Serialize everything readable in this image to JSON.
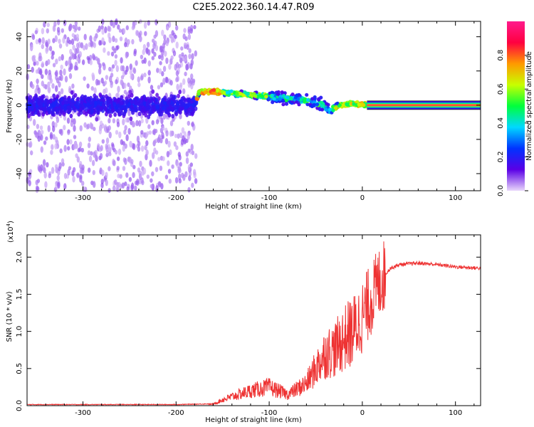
{
  "title": "C2E5.2022.360.14.47.R09",
  "chart_data": [
    {
      "type": "heatmap",
      "xlabel": "Height of straight line (km)",
      "ylabel": "Frequency (Hz)",
      "xlim": [
        -360,
        127
      ],
      "ylim": [
        -50,
        49
      ],
      "x_ticks": [
        -300,
        -200,
        -100,
        0,
        100
      ],
      "x_tick_labels": [
        "-300",
        "-200",
        "-100",
        "0",
        "100"
      ],
      "y_ticks": [
        -40,
        -20,
        0,
        20,
        40
      ],
      "y_tick_labels": [
        "-40",
        "-20",
        "0",
        "20",
        "40"
      ],
      "ridge": {
        "x": [
          -360,
          -180,
          -175,
          -160,
          -140,
          -120,
          -100,
          -80,
          -60,
          -45,
          -35,
          -25,
          -10,
          5,
          127
        ],
        "frequency": [
          0,
          0,
          8,
          8,
          7,
          6,
          5,
          4,
          3,
          1,
          -3,
          0,
          1,
          0,
          0
        ]
      },
      "colorbar": {
        "label": "Normalized spectral amplitude",
        "range": [
          0,
          1
        ],
        "ticks": [
          0.0,
          0.2,
          0.4,
          0.6,
          0.8
        ],
        "tick_labels": [
          "0.0",
          "0.2",
          "0.4",
          "0.6",
          "0.8"
        ],
        "colors": [
          "#e9d7fb",
          "#5a00e6",
          "#0033ff",
          "#00d8ff",
          "#00ff3c",
          "#c8ff00",
          "#ff9900",
          "#ff0040",
          "#ff1a8c"
        ]
      },
      "grid": false,
      "legend": "none"
    },
    {
      "type": "line",
      "xlabel": "Height of straight line (km)",
      "ylabel": "SNR (10 * v/v)",
      "y_multiplier": "(x10",
      "y_multiplier_exp": "4",
      "y_multiplier_close": ")",
      "xlim": [
        -360,
        127
      ],
      "ylim": [
        0,
        2.3
      ],
      "x_ticks": [
        -300,
        -200,
        -100,
        0,
        100
      ],
      "x_tick_labels": [
        "-300",
        "-200",
        "-100",
        "0",
        "100"
      ],
      "y_ticks": [
        0.0,
        0.5,
        1.0,
        1.5,
        2.0
      ],
      "y_tick_labels": [
        "0.0",
        "0.5",
        "1.0",
        "1.5",
        "2.0"
      ],
      "color": "#ee3333",
      "series": [
        {
          "x": [
            -360,
            -300,
            -200,
            -160,
            -150,
            -140,
            -120,
            -100,
            -80,
            -60,
            -50,
            -40,
            -30,
            -20,
            -10,
            0,
            10,
            20,
            30,
            40,
            60,
            80,
            100,
            127
          ],
          "values": [
            0.01,
            0.01,
            0.01,
            0.02,
            0.08,
            0.12,
            0.2,
            0.25,
            0.15,
            0.3,
            0.5,
            0.7,
            0.75,
            0.9,
            1.0,
            1.2,
            1.45,
            1.7,
            1.85,
            1.9,
            1.92,
            1.9,
            1.87,
            1.85
          ]
        }
      ],
      "grid": false,
      "legend": "none"
    }
  ]
}
